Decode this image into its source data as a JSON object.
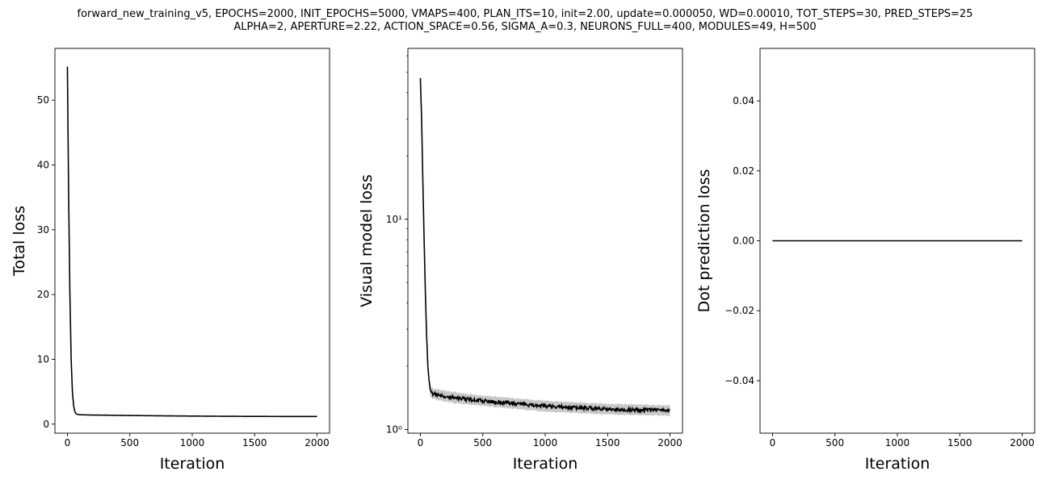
{
  "figure": {
    "title_line1": "forward_new_training_v5, EPOCHS=2000, INIT_EPOCHS=5000, VMAPS=400, PLAN_ITS=10, init=2.00, update=0.000050, WD=0.00010, TOT_STEPS=30, PRED_STEPS=25",
    "title_line2": "ALPHA=2, APERTURE=2.22, ACTION_SPACE=0.56, SIGMA_A=0.3, NEURONS_FULL=400, MODULES=49, H=500"
  },
  "colors": {
    "line": "#000000",
    "band": "#c8c8c8",
    "axis": "#000000"
  },
  "chart_data": [
    {
      "type": "line",
      "xlabel": "Iteration",
      "ylabel": "Total loss",
      "xlim": [
        -100,
        2100
      ],
      "ylim": [
        -1.4,
        58
      ],
      "yscale": "linear",
      "xticks": [
        0,
        500,
        1000,
        1500,
        2000
      ],
      "xtick_labels": [
        "0",
        "500",
        "1000",
        "1500",
        "2000"
      ],
      "yticks": [
        0,
        10,
        20,
        30,
        40,
        50
      ],
      "ytick_labels": [
        "0",
        "10",
        "20",
        "30",
        "40",
        "50"
      ],
      "grid": false,
      "series": [
        {
          "x": [
            0,
            10,
            20,
            30,
            40,
            50,
            60,
            70,
            80,
            100,
            150,
            200,
            300,
            500,
            750,
            1000,
            1250,
            1500,
            1750,
            2000
          ],
          "y": [
            55.2,
            35,
            20,
            10,
            5,
            2.8,
            1.9,
            1.6,
            1.5,
            1.45,
            1.42,
            1.4,
            1.38,
            1.33,
            1.28,
            1.24,
            1.21,
            1.19,
            1.18,
            1.17
          ]
        }
      ]
    },
    {
      "type": "line",
      "xlabel": "Iteration",
      "ylabel": "Visual model loss",
      "xlim": [
        -100,
        2100
      ],
      "ylim": [
        0.96,
        65
      ],
      "yscale": "log",
      "xticks": [
        0,
        500,
        1000,
        1500,
        2000
      ],
      "xtick_labels": [
        "0",
        "500",
        "1000",
        "1500",
        "2000"
      ],
      "yticks": [
        1,
        10
      ],
      "ytick_labels": [
        "10⁰",
        "10¹"
      ],
      "grid": false,
      "series": [
        {
          "x": [
            0,
            10,
            20,
            30,
            40,
            50,
            60,
            70,
            80,
            100,
            150,
            200,
            300,
            500,
            750,
            1000,
            1250,
            1500,
            1750,
            2000
          ],
          "y": [
            47,
            30,
            15,
            8,
            4.5,
            2.8,
            2.0,
            1.7,
            1.52,
            1.48,
            1.46,
            1.44,
            1.41,
            1.37,
            1.33,
            1.29,
            1.27,
            1.25,
            1.24,
            1.23
          ]
        }
      ]
    },
    {
      "type": "line",
      "xlabel": "Iteration",
      "ylabel": "Dot prediction loss",
      "xlim": [
        -100,
        2100
      ],
      "ylim": [
        -0.055,
        0.055
      ],
      "yscale": "linear",
      "xticks": [
        0,
        500,
        1000,
        1500,
        2000
      ],
      "xtick_labels": [
        "0",
        "500",
        "1000",
        "1500",
        "2000"
      ],
      "yticks": [
        -0.04,
        -0.02,
        0.0,
        0.02,
        0.04
      ],
      "ytick_labels": [
        "−0.04",
        "−0.02",
        "0.00",
        "0.02",
        "0.04"
      ],
      "grid": false,
      "series": [
        {
          "x": [
            0,
            2000
          ],
          "y": [
            0,
            0
          ]
        }
      ]
    }
  ]
}
